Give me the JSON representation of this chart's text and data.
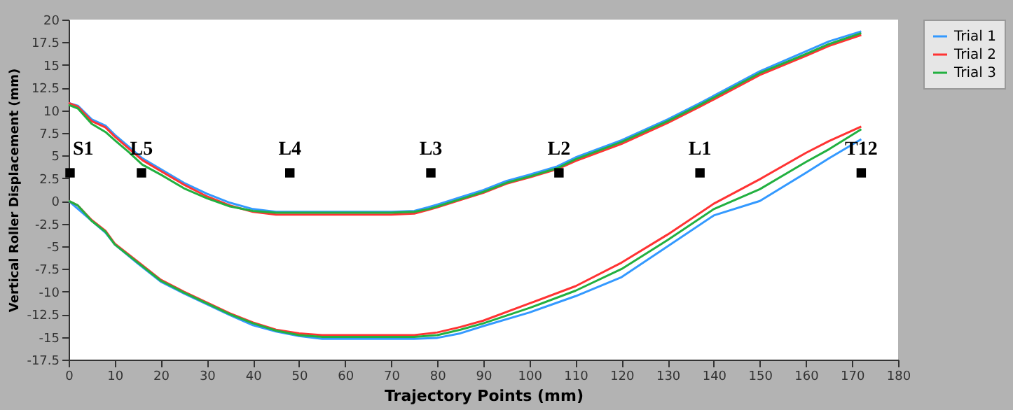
{
  "chart_data": {
    "type": "line",
    "xlabel": "Trajectory Points (mm)",
    "ylabel": "Vertical Roller Displacement (mm)",
    "xlim": [
      0,
      180
    ],
    "xticks": [
      0,
      10,
      20,
      30,
      40,
      50,
      60,
      70,
      80,
      90,
      100,
      110,
      120,
      130,
      140,
      150,
      160,
      170,
      180
    ],
    "ylim": [
      -17.5,
      20
    ],
    "yticks": [
      -17.5,
      -15,
      -12.5,
      -10,
      -7.5,
      -5,
      -2.5,
      0,
      2.5,
      5,
      7.5,
      10,
      12.5,
      15,
      17.5,
      20
    ],
    "grid": false,
    "legend": "right",
    "marker": "none",
    "line_style": "solid",
    "series": [
      {
        "name": "Trial 1",
        "color": "#3399ff",
        "x": [
          0,
          2,
          5,
          8,
          10,
          13,
          16,
          20,
          25,
          30,
          35,
          40,
          45,
          50,
          60,
          70,
          75,
          78,
          80,
          85,
          90,
          95,
          100,
          106,
          110,
          120,
          130,
          137,
          140,
          150,
          160,
          165,
          172
        ],
        "values": [
          10.8,
          10.5,
          9.0,
          8.3,
          7.3,
          6.0,
          4.7,
          3.5,
          2.0,
          0.8,
          -0.2,
          -0.9,
          -1.2,
          -1.2,
          -1.2,
          -1.2,
          -1.1,
          -0.7,
          -0.4,
          0.4,
          1.2,
          2.2,
          2.9,
          3.8,
          4.8,
          6.7,
          9.0,
          10.8,
          11.6,
          14.3,
          16.5,
          17.6,
          18.7
        ]
      },
      {
        "name": "Trial 2",
        "color": "#ff3333",
        "x": [
          0,
          2,
          5,
          8,
          10,
          13,
          16,
          20,
          25,
          30,
          35,
          40,
          45,
          50,
          60,
          70,
          75,
          78,
          80,
          85,
          90,
          95,
          100,
          106,
          110,
          120,
          130,
          137,
          140,
          150,
          160,
          165,
          172
        ],
        "values": [
          10.8,
          10.4,
          8.8,
          8.1,
          7.1,
          5.8,
          4.5,
          3.3,
          1.8,
          0.5,
          -0.5,
          -1.2,
          -1.5,
          -1.5,
          -1.5,
          -1.5,
          -1.4,
          -1.0,
          -0.7,
          0.1,
          0.9,
          1.9,
          2.6,
          3.5,
          4.4,
          6.3,
          8.6,
          10.4,
          11.2,
          13.9,
          16.0,
          17.1,
          18.3
        ]
      },
      {
        "name": "Trial 3",
        "color": "#22b040",
        "x": [
          0,
          2,
          5,
          8,
          10,
          13,
          16,
          20,
          25,
          30,
          35,
          40,
          45,
          50,
          60,
          70,
          75,
          78,
          80,
          85,
          90,
          95,
          100,
          106,
          110,
          120,
          130,
          137,
          140,
          150,
          160,
          165,
          172
        ],
        "values": [
          10.6,
          10.2,
          8.5,
          7.6,
          6.7,
          5.4,
          4.0,
          2.9,
          1.4,
          0.3,
          -0.6,
          -1.1,
          -1.3,
          -1.3,
          -1.3,
          -1.3,
          -1.2,
          -0.9,
          -0.6,
          0.2,
          1.0,
          2.0,
          2.7,
          3.6,
          4.6,
          6.5,
          8.8,
          10.6,
          11.4,
          14.1,
          16.2,
          17.3,
          18.5
        ]
      },
      {
        "color": "#3399ff",
        "x": [
          0,
          5,
          8,
          10,
          15,
          20,
          25,
          30,
          35,
          40,
          45,
          50,
          55,
          60,
          70,
          75,
          80,
          85,
          90,
          100,
          110,
          120,
          130,
          140,
          150,
          160,
          165,
          172
        ],
        "values": [
          0,
          -2.2,
          -3.5,
          -4.8,
          -6.9,
          -8.9,
          -10.2,
          -11.4,
          -12.6,
          -13.7,
          -14.4,
          -14.9,
          -15.2,
          -15.2,
          -15.2,
          -15.2,
          -15.1,
          -14.6,
          -13.8,
          -12.3,
          -10.5,
          -8.4,
          -5.0,
          -1.6,
          0.0,
          3.1,
          4.7,
          6.8
        ]
      },
      {
        "color": "#ff3333",
        "x": [
          0,
          2,
          5,
          8,
          10,
          15,
          20,
          25,
          30,
          35,
          40,
          45,
          50,
          55,
          60,
          70,
          75,
          80,
          85,
          90,
          100,
          110,
          120,
          130,
          140,
          150,
          160,
          165,
          172
        ],
        "values": [
          0,
          -0.5,
          -2.1,
          -3.3,
          -4.7,
          -6.7,
          -8.7,
          -10.0,
          -11.2,
          -12.4,
          -13.4,
          -14.2,
          -14.6,
          -14.8,
          -14.8,
          -14.8,
          -14.8,
          -14.5,
          -13.9,
          -13.2,
          -11.3,
          -9.4,
          -6.8,
          -3.7,
          -0.3,
          2.4,
          5.3,
          6.6,
          8.2
        ]
      },
      {
        "color": "#22b040",
        "x": [
          0,
          2,
          5,
          8,
          10,
          15,
          20,
          25,
          30,
          35,
          40,
          45,
          50,
          55,
          60,
          70,
          75,
          80,
          85,
          90,
          100,
          110,
          120,
          130,
          140,
          150,
          160,
          165,
          172
        ],
        "values": [
          0,
          -0.5,
          -2.2,
          -3.4,
          -4.8,
          -6.8,
          -8.8,
          -10.1,
          -11.3,
          -12.5,
          -13.5,
          -14.3,
          -14.8,
          -15.0,
          -15.0,
          -15.0,
          -15.0,
          -14.8,
          -14.2,
          -13.5,
          -11.8,
          -9.9,
          -7.5,
          -4.3,
          -0.9,
          1.3,
          4.3,
          5.7,
          7.9
        ]
      },
      {
        "type": "scatter",
        "marker": "square",
        "color": "#000000",
        "x": [
          0.3,
          15.8,
          48,
          78.6,
          106.4,
          137,
          172
        ],
        "values": [
          3.1,
          3.1,
          3.1,
          3.1,
          3.1,
          3.1,
          3.1
        ]
      }
    ],
    "annotations": [
      {
        "text": "S1",
        "x": 0.3,
        "y": 3.1
      },
      {
        "text": "L5",
        "x": 15.8,
        "y": 3.1
      },
      {
        "text": "L4",
        "x": 48,
        "y": 3.1
      },
      {
        "text": "L3",
        "x": 78.6,
        "y": 3.1
      },
      {
        "text": "L2",
        "x": 106.4,
        "y": 3.1
      },
      {
        "text": "L1",
        "x": 137,
        "y": 3.1
      },
      {
        "text": "T12",
        "x": 172,
        "y": 3.1
      }
    ]
  }
}
